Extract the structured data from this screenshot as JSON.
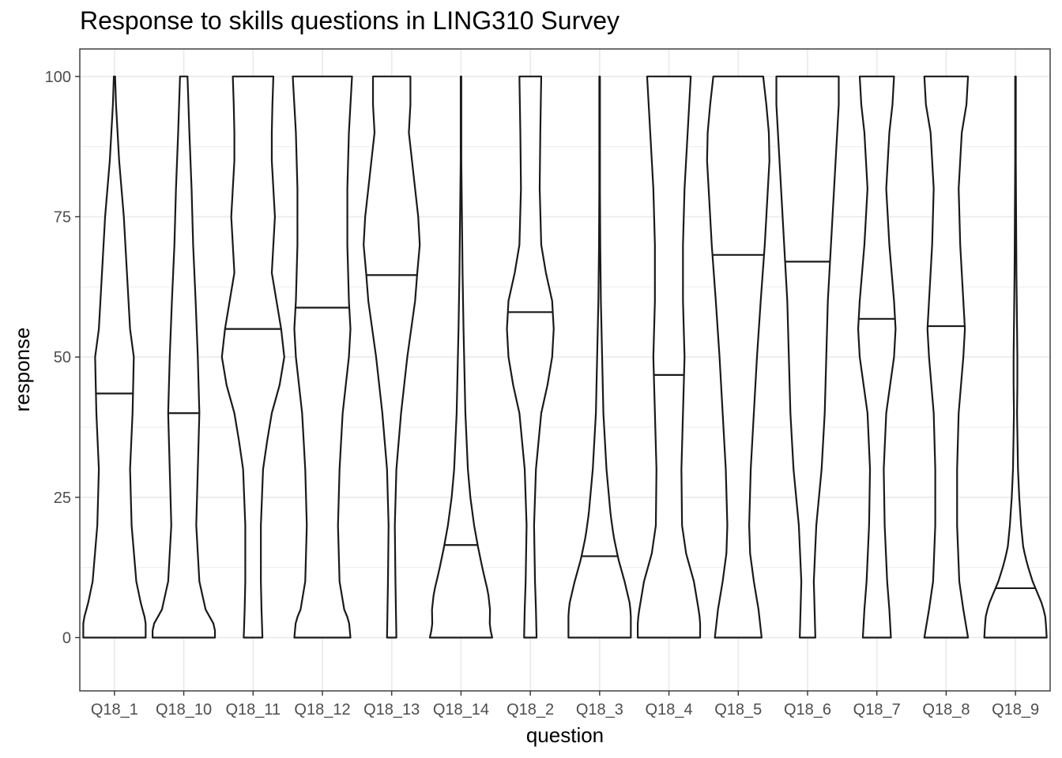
{
  "chart_data": {
    "type": "violin",
    "title": "Response to skills questions in LING310 Survey",
    "xlabel": "question",
    "ylabel": "response",
    "ylim": [
      -9.5,
      104.9
    ],
    "yticks": [
      0,
      25,
      50,
      75,
      100
    ],
    "grid": true,
    "legend": "none",
    "colors": {
      "outline": "#1a1a1a",
      "grid": "#ebebeb",
      "panel_border": "#333333",
      "tick_text": "#4d4d4d"
    },
    "categories": [
      "Q18_1",
      "Q18_10",
      "Q18_11",
      "Q18_12",
      "Q18_13",
      "Q18_14",
      "Q18_2",
      "Q18_3",
      "Q18_4",
      "Q18_5",
      "Q18_6",
      "Q18_7",
      "Q18_8",
      "Q18_9"
    ],
    "violins": [
      {
        "category": "Q18_1",
        "median": 43.5,
        "profile": [
          [
            0,
            1.0
          ],
          [
            3,
            1.0
          ],
          [
            6,
            0.85
          ],
          [
            10,
            0.7
          ],
          [
            20,
            0.55
          ],
          [
            30,
            0.5
          ],
          [
            40,
            0.58
          ],
          [
            45,
            0.6
          ],
          [
            50,
            0.62
          ],
          [
            55,
            0.5
          ],
          [
            60,
            0.45
          ],
          [
            65,
            0.4
          ],
          [
            75,
            0.3
          ],
          [
            85,
            0.15
          ],
          [
            95,
            0.05
          ],
          [
            100,
            0.02
          ]
        ]
      },
      {
        "category": "Q18_10",
        "median": 40,
        "profile": [
          [
            0,
            1.0
          ],
          [
            2,
            1.0
          ],
          [
            5,
            0.7
          ],
          [
            10,
            0.5
          ],
          [
            20,
            0.4
          ],
          [
            30,
            0.45
          ],
          [
            40,
            0.5
          ],
          [
            50,
            0.45
          ],
          [
            60,
            0.38
          ],
          [
            70,
            0.3
          ],
          [
            80,
            0.25
          ],
          [
            90,
            0.18
          ],
          [
            100,
            0.12
          ]
        ]
      },
      {
        "category": "Q18_11",
        "median": 55,
        "profile": [
          [
            0,
            0.3
          ],
          [
            5,
            0.27
          ],
          [
            10,
            0.25
          ],
          [
            20,
            0.25
          ],
          [
            30,
            0.32
          ],
          [
            35,
            0.45
          ],
          [
            40,
            0.6
          ],
          [
            45,
            0.85
          ],
          [
            50,
            1.0
          ],
          [
            55,
            0.9
          ],
          [
            60,
            0.75
          ],
          [
            65,
            0.6
          ],
          [
            70,
            0.65
          ],
          [
            75,
            0.7
          ],
          [
            80,
            0.65
          ],
          [
            85,
            0.6
          ],
          [
            90,
            0.6
          ],
          [
            95,
            0.62
          ],
          [
            100,
            0.65
          ]
        ]
      },
      {
        "category": "Q18_12",
        "median": 58.8,
        "profile": [
          [
            0,
            0.9
          ],
          [
            3,
            0.85
          ],
          [
            5,
            0.7
          ],
          [
            10,
            0.55
          ],
          [
            20,
            0.5
          ],
          [
            30,
            0.55
          ],
          [
            40,
            0.65
          ],
          [
            45,
            0.75
          ],
          [
            50,
            0.85
          ],
          [
            55,
            0.9
          ],
          [
            60,
            0.85
          ],
          [
            70,
            0.8
          ],
          [
            80,
            0.8
          ],
          [
            90,
            0.85
          ],
          [
            95,
            0.9
          ],
          [
            100,
            0.95
          ]
        ]
      },
      {
        "category": "Q18_13",
        "median": 64.6,
        "profile": [
          [
            0,
            0.15
          ],
          [
            10,
            0.12
          ],
          [
            20,
            0.1
          ],
          [
            30,
            0.15
          ],
          [
            40,
            0.3
          ],
          [
            50,
            0.5
          ],
          [
            60,
            0.75
          ],
          [
            65,
            0.82
          ],
          [
            70,
            0.9
          ],
          [
            75,
            0.85
          ],
          [
            80,
            0.75
          ],
          [
            85,
            0.65
          ],
          [
            90,
            0.55
          ],
          [
            95,
            0.6
          ],
          [
            100,
            0.6
          ]
        ]
      },
      {
        "category": "Q18_14",
        "median": 16.5,
        "profile": [
          [
            0,
            1.0
          ],
          [
            2,
            0.92
          ],
          [
            5,
            0.93
          ],
          [
            8,
            0.87
          ],
          [
            12,
            0.7
          ],
          [
            16,
            0.55
          ],
          [
            20,
            0.42
          ],
          [
            25,
            0.3
          ],
          [
            30,
            0.22
          ],
          [
            40,
            0.14
          ],
          [
            50,
            0.1
          ],
          [
            55,
            0.08
          ],
          [
            65,
            0.05
          ],
          [
            75,
            0.03
          ],
          [
            85,
            0.01
          ],
          [
            100,
            0.01
          ]
        ]
      },
      {
        "category": "Q18_2",
        "median": 58,
        "profile": [
          [
            0,
            0.2
          ],
          [
            5,
            0.18
          ],
          [
            10,
            0.15
          ],
          [
            20,
            0.12
          ],
          [
            30,
            0.18
          ],
          [
            40,
            0.35
          ],
          [
            45,
            0.55
          ],
          [
            50,
            0.7
          ],
          [
            55,
            0.75
          ],
          [
            60,
            0.7
          ],
          [
            65,
            0.5
          ],
          [
            70,
            0.35
          ],
          [
            80,
            0.3
          ],
          [
            90,
            0.32
          ],
          [
            100,
            0.35
          ]
        ]
      },
      {
        "category": "Q18_3",
        "median": 14.5,
        "profile": [
          [
            0,
            1.0
          ],
          [
            2,
            1.0
          ],
          [
            4,
            1.0
          ],
          [
            6,
            0.97
          ],
          [
            10,
            0.8
          ],
          [
            14,
            0.6
          ],
          [
            18,
            0.45
          ],
          [
            22,
            0.35
          ],
          [
            30,
            0.22
          ],
          [
            40,
            0.12
          ],
          [
            50,
            0.08
          ],
          [
            60,
            0.04
          ],
          [
            70,
            0.02
          ],
          [
            80,
            0.01
          ],
          [
            100,
            0.01
          ]
        ]
      },
      {
        "category": "Q18_4",
        "median": 46.8,
        "profile": [
          [
            0,
            1.0
          ],
          [
            3,
            1.0
          ],
          [
            5,
            0.95
          ],
          [
            10,
            0.8
          ],
          [
            15,
            0.55
          ],
          [
            20,
            0.42
          ],
          [
            30,
            0.4
          ],
          [
            40,
            0.45
          ],
          [
            50,
            0.5
          ],
          [
            60,
            0.45
          ],
          [
            70,
            0.45
          ],
          [
            80,
            0.5
          ],
          [
            90,
            0.6
          ],
          [
            95,
            0.65
          ],
          [
            100,
            0.7
          ]
        ]
      },
      {
        "category": "Q18_5",
        "median": 68.2,
        "profile": [
          [
            0,
            0.75
          ],
          [
            5,
            0.65
          ],
          [
            10,
            0.5
          ],
          [
            15,
            0.38
          ],
          [
            20,
            0.35
          ],
          [
            30,
            0.4
          ],
          [
            40,
            0.5
          ],
          [
            50,
            0.6
          ],
          [
            60,
            0.72
          ],
          [
            70,
            0.85
          ],
          [
            75,
            0.9
          ],
          [
            80,
            0.95
          ],
          [
            85,
            1.0
          ],
          [
            90,
            0.98
          ],
          [
            95,
            0.9
          ],
          [
            100,
            0.8
          ]
        ]
      },
      {
        "category": "Q18_6",
        "median": 67,
        "profile": [
          [
            0,
            0.25
          ],
          [
            10,
            0.2
          ],
          [
            20,
            0.28
          ],
          [
            30,
            0.45
          ],
          [
            40,
            0.55
          ],
          [
            50,
            0.6
          ],
          [
            60,
            0.65
          ],
          [
            70,
            0.75
          ],
          [
            80,
            0.85
          ],
          [
            90,
            0.95
          ],
          [
            95,
            1.0
          ],
          [
            100,
            1.0
          ]
        ]
      },
      {
        "category": "Q18_7",
        "median": 56.8,
        "profile": [
          [
            0,
            0.45
          ],
          [
            5,
            0.4
          ],
          [
            10,
            0.33
          ],
          [
            20,
            0.25
          ],
          [
            30,
            0.22
          ],
          [
            40,
            0.3
          ],
          [
            50,
            0.55
          ],
          [
            55,
            0.6
          ],
          [
            60,
            0.55
          ],
          [
            70,
            0.4
          ],
          [
            80,
            0.3
          ],
          [
            90,
            0.4
          ],
          [
            95,
            0.5
          ],
          [
            100,
            0.55
          ]
        ]
      },
      {
        "category": "Q18_8",
        "median": 55.5,
        "profile": [
          [
            0,
            0.7
          ],
          [
            5,
            0.55
          ],
          [
            10,
            0.42
          ],
          [
            20,
            0.35
          ],
          [
            30,
            0.35
          ],
          [
            40,
            0.4
          ],
          [
            50,
            0.55
          ],
          [
            55,
            0.6
          ],
          [
            60,
            0.55
          ],
          [
            70,
            0.45
          ],
          [
            80,
            0.4
          ],
          [
            90,
            0.5
          ],
          [
            95,
            0.65
          ],
          [
            100,
            0.7
          ]
        ]
      },
      {
        "category": "Q18_9",
        "median": 8.8,
        "profile": [
          [
            0,
            1.0
          ],
          [
            2,
            0.98
          ],
          [
            4,
            0.95
          ],
          [
            6,
            0.85
          ],
          [
            8,
            0.7
          ],
          [
            10,
            0.55
          ],
          [
            13,
            0.38
          ],
          [
            16,
            0.25
          ],
          [
            20,
            0.18
          ],
          [
            25,
            0.12
          ],
          [
            30,
            0.08
          ],
          [
            40,
            0.05
          ],
          [
            45,
            0.06
          ],
          [
            50,
            0.06
          ],
          [
            55,
            0.05
          ],
          [
            65,
            0.03
          ],
          [
            75,
            0.02
          ],
          [
            85,
            0.01
          ],
          [
            100,
            0.01
          ]
        ]
      }
    ]
  }
}
